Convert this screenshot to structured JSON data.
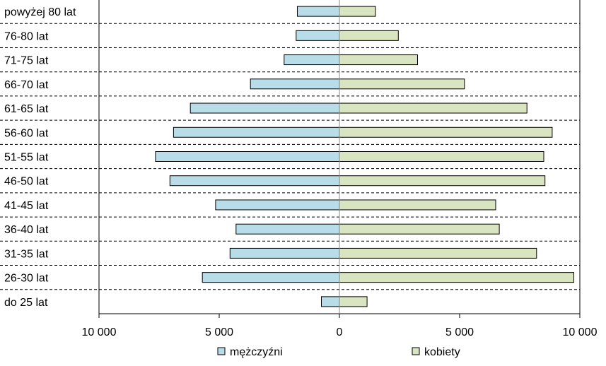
{
  "chart_data": {
    "type": "bar",
    "orientation": "horizontal",
    "layout": "population-pyramid",
    "categories": [
      "powyżej 80 lat",
      "76-80 lat",
      "71-75 lat",
      "66-70 lat",
      "61-65 lat",
      "56-60 lat",
      "51-55 lat",
      "46-50 lat",
      "41-45 lat",
      "36-40 lat",
      "31-35 lat",
      "26-30 lat",
      "do 25 lat"
    ],
    "series": [
      {
        "name": "mężczyźni",
        "side": "left",
        "color": "#b9dde8",
        "values": [
          1750,
          1800,
          2300,
          3700,
          6200,
          6900,
          7650,
          7050,
          5150,
          4300,
          4550,
          5700,
          750
        ]
      },
      {
        "name": "kobiety",
        "side": "right",
        "color": "#d9e4c0",
        "values": [
          1500,
          2450,
          3250,
          5200,
          7800,
          8850,
          8500,
          8550,
          6500,
          6650,
          8200,
          9750,
          1150
        ]
      }
    ],
    "xlim": [
      -10000,
      10000
    ],
    "xticks": [
      -10000,
      -5000,
      0,
      5000,
      10000
    ],
    "xtick_labels": [
      "10 000",
      "5 000",
      "0",
      "5 000",
      "10 000"
    ],
    "grid": "dashed horizontal separators between categories",
    "legend_position": "bottom"
  }
}
